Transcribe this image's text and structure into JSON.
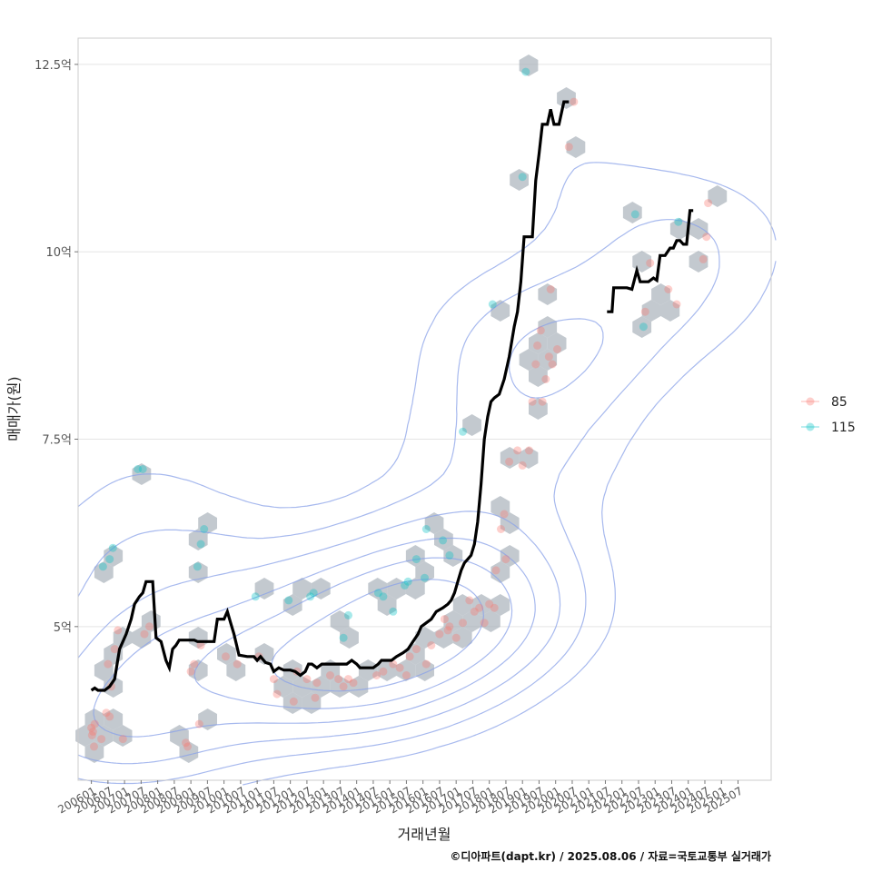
{
  "chart_data": {
    "type": "scatter",
    "xlabel": "거래년월",
    "ylabel": "매매가(원)",
    "caption": "©디아파트(dapt.kr) / 2025.08.06 / 자료=국토교통부 실거래가",
    "y_ticks": [
      {
        "value": 5,
        "label": "5억"
      },
      {
        "value": 7.5,
        "label": "7.5억"
      },
      {
        "value": 10,
        "label": "10억"
      },
      {
        "value": 12.5,
        "label": "12.5억"
      }
    ],
    "x_ticks": [
      "200601",
      "200607",
      "200701",
      "200707",
      "200801",
      "200807",
      "200901",
      "200907",
      "201001",
      "201007",
      "201101",
      "201107",
      "201201",
      "201207",
      "201301",
      "201307",
      "201401",
      "201407",
      "201501",
      "201507",
      "201601",
      "201607",
      "201701",
      "201707",
      "201801",
      "201807",
      "201901",
      "201907",
      "202001",
      "202007",
      "202101",
      "202107",
      "202201",
      "202207",
      "202301",
      "202307",
      "202401",
      "202407",
      "202501",
      "202507"
    ],
    "xlim": [
      2005.6,
      2026.5
    ],
    "ylim": [
      2.95,
      12.85
    ],
    "grid": true,
    "legend_position": "right",
    "colors": {
      "s85": "#F8766D",
      "s115": "#00BFC4",
      "trend": "#000000",
      "hex": "#a9b2ba",
      "contour": "#8aa2e8",
      "panel_border": "#cccccc",
      "grid": "#e5e5e5"
    },
    "series": [
      {
        "name": "85",
        "color": "#F8766D",
        "points": [
          [
            2006.0,
            3.65
          ],
          [
            2006.02,
            3.55
          ],
          [
            2006.05,
            3.6
          ],
          [
            2006.08,
            3.4
          ],
          [
            2006.1,
            3.7
          ],
          [
            2006.3,
            3.5
          ],
          [
            2006.45,
            3.85
          ],
          [
            2006.55,
            3.8
          ],
          [
            2006.6,
            4.2
          ],
          [
            2006.7,
            4.7
          ],
          [
            2006.8,
            4.95
          ],
          [
            2006.95,
            3.5
          ],
          [
            2006.5,
            4.5
          ],
          [
            2007.6,
            4.9
          ],
          [
            2007.75,
            5.0
          ],
          [
            2008.85,
            3.45
          ],
          [
            2008.9,
            3.4
          ],
          [
            2009.0,
            4.4
          ],
          [
            2009.1,
            4.5
          ],
          [
            2009.25,
            3.7
          ],
          [
            2009.3,
            4.75
          ],
          [
            2010.05,
            4.6
          ],
          [
            2010.4,
            4.5
          ],
          [
            2011.05,
            4.6
          ],
          [
            2011.5,
            4.3
          ],
          [
            2011.6,
            4.1
          ],
          [
            2012.1,
            4.0
          ],
          [
            2012.2,
            4.4
          ],
          [
            2012.5,
            4.3
          ],
          [
            2012.75,
            4.05
          ],
          [
            2012.8,
            4.25
          ],
          [
            2013.2,
            4.35
          ],
          [
            2013.45,
            4.3
          ],
          [
            2013.6,
            4.2
          ],
          [
            2013.75,
            4.3
          ],
          [
            2013.9,
            4.25
          ],
          [
            2014.6,
            4.35
          ],
          [
            2014.8,
            4.4
          ],
          [
            2015.1,
            4.5
          ],
          [
            2015.3,
            4.45
          ],
          [
            2015.5,
            4.35
          ],
          [
            2015.6,
            4.6
          ],
          [
            2015.8,
            4.7
          ],
          [
            2016.1,
            4.5
          ],
          [
            2016.25,
            4.75
          ],
          [
            2016.5,
            4.9
          ],
          [
            2016.65,
            5.1
          ],
          [
            2016.75,
            4.95
          ],
          [
            2016.8,
            5.0
          ],
          [
            2017.0,
            4.85
          ],
          [
            2017.2,
            5.05
          ],
          [
            2017.4,
            5.35
          ],
          [
            2017.55,
            5.2
          ],
          [
            2017.7,
            5.25
          ],
          [
            2017.85,
            5.05
          ],
          [
            2018.0,
            5.3
          ],
          [
            2018.15,
            5.25
          ],
          [
            2018.2,
            5.75
          ],
          [
            2018.35,
            6.3
          ],
          [
            2018.45,
            6.5
          ],
          [
            2018.5,
            5.9
          ],
          [
            2018.6,
            7.2
          ],
          [
            2018.85,
            7.35
          ],
          [
            2019.0,
            7.15
          ],
          [
            2019.2,
            7.35
          ],
          [
            2019.3,
            8.0
          ],
          [
            2019.4,
            8.5
          ],
          [
            2019.45,
            8.75
          ],
          [
            2019.55,
            8.95
          ],
          [
            2019.6,
            8.0
          ],
          [
            2019.7,
            8.3
          ],
          [
            2019.8,
            8.6
          ],
          [
            2019.85,
            9.5
          ],
          [
            2019.9,
            8.5
          ],
          [
            2020.05,
            8.7
          ],
          [
            2020.4,
            11.4
          ],
          [
            2020.55,
            12.0
          ],
          [
            2022.7,
            9.2
          ],
          [
            2022.85,
            9.85
          ],
          [
            2023.4,
            9.5
          ],
          [
            2023.65,
            9.3
          ],
          [
            2024.45,
            9.9
          ],
          [
            2024.55,
            10.2
          ],
          [
            2024.6,
            10.65
          ]
        ]
      },
      {
        "name": "115",
        "color": "#00BFC4",
        "points": [
          [
            2006.35,
            5.8
          ],
          [
            2006.55,
            5.9
          ],
          [
            2006.65,
            6.05
          ],
          [
            2007.4,
            7.1
          ],
          [
            2007.55,
            7.1
          ],
          [
            2009.2,
            5.8
          ],
          [
            2009.3,
            6.1
          ],
          [
            2009.4,
            6.3
          ],
          [
            2010.95,
            5.4
          ],
          [
            2011.95,
            5.35
          ],
          [
            2012.6,
            5.4
          ],
          [
            2012.7,
            5.45
          ],
          [
            2013.6,
            4.85
          ],
          [
            2013.75,
            5.15
          ],
          [
            2014.65,
            5.45
          ],
          [
            2014.8,
            5.4
          ],
          [
            2015.1,
            5.2
          ],
          [
            2015.45,
            5.55
          ],
          [
            2015.55,
            5.6
          ],
          [
            2015.8,
            5.9
          ],
          [
            2016.05,
            5.65
          ],
          [
            2016.1,
            6.3
          ],
          [
            2016.6,
            6.15
          ],
          [
            2016.8,
            5.95
          ],
          [
            2017.2,
            7.6
          ],
          [
            2018.1,
            9.3
          ],
          [
            2019.0,
            11.0
          ],
          [
            2019.1,
            12.4
          ],
          [
            2022.4,
            10.5
          ],
          [
            2022.65,
            9.0
          ],
          [
            2023.7,
            10.4
          ]
        ]
      }
    ],
    "trend": {
      "segments": [
        [
          [
            2006.0,
            4.15
          ],
          [
            2006.1,
            4.18
          ],
          [
            2006.2,
            4.15
          ],
          [
            2006.4,
            4.15
          ],
          [
            2006.55,
            4.2
          ],
          [
            2006.7,
            4.3
          ],
          [
            2006.85,
            4.7
          ],
          [
            2006.95,
            4.8
          ],
          [
            2007.05,
            4.9
          ],
          [
            2007.2,
            5.1
          ],
          [
            2007.3,
            5.3
          ],
          [
            2007.45,
            5.4
          ],
          [
            2007.55,
            5.45
          ],
          [
            2007.65,
            5.6
          ],
          [
            2007.8,
            5.6
          ],
          [
            2007.85,
            5.6
          ],
          [
            2007.95,
            4.85
          ],
          [
            2008.1,
            4.8
          ],
          [
            2008.25,
            4.55
          ],
          [
            2008.35,
            4.45
          ],
          [
            2008.45,
            4.7
          ],
          [
            2008.55,
            4.75
          ],
          [
            2008.65,
            4.82
          ],
          [
            2008.8,
            4.82
          ],
          [
            2009.1,
            4.82
          ],
          [
            2009.2,
            4.8
          ],
          [
            2009.4,
            4.8
          ],
          [
            2009.55,
            4.8
          ],
          [
            2009.7,
            4.8
          ],
          [
            2009.8,
            5.1
          ],
          [
            2010.0,
            5.1
          ],
          [
            2010.1,
            5.2
          ],
          [
            2010.2,
            5.05
          ],
          [
            2010.3,
            4.9
          ],
          [
            2010.45,
            4.62
          ],
          [
            2010.7,
            4.6
          ],
          [
            2010.9,
            4.6
          ],
          [
            2011.0,
            4.55
          ],
          [
            2011.1,
            4.6
          ],
          [
            2011.25,
            4.52
          ],
          [
            2011.4,
            4.5
          ],
          [
            2011.5,
            4.4
          ],
          [
            2011.65,
            4.45
          ],
          [
            2011.8,
            4.42
          ],
          [
            2012.0,
            4.42
          ],
          [
            2012.15,
            4.4
          ],
          [
            2012.3,
            4.35
          ],
          [
            2012.45,
            4.4
          ],
          [
            2012.55,
            4.5
          ],
          [
            2012.65,
            4.5
          ],
          [
            2012.8,
            4.45
          ],
          [
            2012.95,
            4.5
          ],
          [
            2013.1,
            4.5
          ],
          [
            2013.25,
            4.5
          ],
          [
            2013.5,
            4.5
          ],
          [
            2013.7,
            4.5
          ],
          [
            2013.85,
            4.55
          ],
          [
            2014.0,
            4.5
          ],
          [
            2014.1,
            4.45
          ],
          [
            2014.25,
            4.45
          ],
          [
            2014.5,
            4.45
          ],
          [
            2014.65,
            4.5
          ],
          [
            2014.75,
            4.55
          ],
          [
            2014.9,
            4.55
          ],
          [
            2015.05,
            4.55
          ],
          [
            2015.2,
            4.6
          ],
          [
            2015.4,
            4.65
          ],
          [
            2015.55,
            4.7
          ],
          [
            2015.7,
            4.8
          ],
          [
            2015.85,
            4.9
          ],
          [
            2015.95,
            5.0
          ],
          [
            2016.1,
            5.05
          ],
          [
            2016.25,
            5.1
          ],
          [
            2016.4,
            5.2
          ],
          [
            2016.6,
            5.25
          ],
          [
            2016.75,
            5.3
          ],
          [
            2016.85,
            5.35
          ],
          [
            2016.95,
            5.45
          ],
          [
            2017.05,
            5.6
          ],
          [
            2017.15,
            5.75
          ],
          [
            2017.25,
            5.85
          ],
          [
            2017.35,
            5.9
          ],
          [
            2017.45,
            5.95
          ],
          [
            2017.55,
            6.1
          ],
          [
            2017.65,
            6.4
          ],
          [
            2017.75,
            6.9
          ],
          [
            2017.85,
            7.5
          ],
          [
            2017.95,
            7.8
          ],
          [
            2018.05,
            8.0
          ],
          [
            2018.15,
            8.05
          ],
          [
            2018.3,
            8.1
          ],
          [
            2018.45,
            8.3
          ],
          [
            2018.6,
            8.6
          ],
          [
            2018.75,
            9.0
          ],
          [
            2018.85,
            9.2
          ],
          [
            2018.95,
            9.6
          ],
          [
            2019.05,
            10.2
          ],
          [
            2019.15,
            10.2
          ],
          [
            2019.3,
            10.2
          ],
          [
            2019.4,
            10.95
          ],
          [
            2019.5,
            11.3
          ],
          [
            2019.6,
            11.7
          ],
          [
            2019.75,
            11.7
          ],
          [
            2019.85,
            11.9
          ],
          [
            2019.95,
            11.7
          ],
          [
            2020.1,
            11.7
          ],
          [
            2020.25,
            12.0
          ],
          [
            2020.4,
            12.0
          ]
        ],
        [
          [
            2021.55,
            9.2
          ],
          [
            2021.7,
            9.2
          ],
          [
            2021.75,
            9.52
          ],
          [
            2021.9,
            9.52
          ],
          [
            2022.15,
            9.52
          ],
          [
            2022.3,
            9.5
          ],
          [
            2022.45,
            9.75
          ],
          [
            2022.55,
            9.6
          ],
          [
            2022.7,
            9.6
          ],
          [
            2022.8,
            9.6
          ],
          [
            2022.95,
            9.65
          ],
          [
            2023.05,
            9.62
          ],
          [
            2023.15,
            9.95
          ],
          [
            2023.3,
            9.95
          ],
          [
            2023.45,
            10.05
          ],
          [
            2023.55,
            10.05
          ],
          [
            2023.65,
            10.15
          ],
          [
            2023.75,
            10.15
          ],
          [
            2023.85,
            10.1
          ],
          [
            2023.95,
            10.1
          ],
          [
            2024.05,
            10.55
          ],
          [
            2024.15,
            10.55
          ]
        ]
      ]
    }
  }
}
